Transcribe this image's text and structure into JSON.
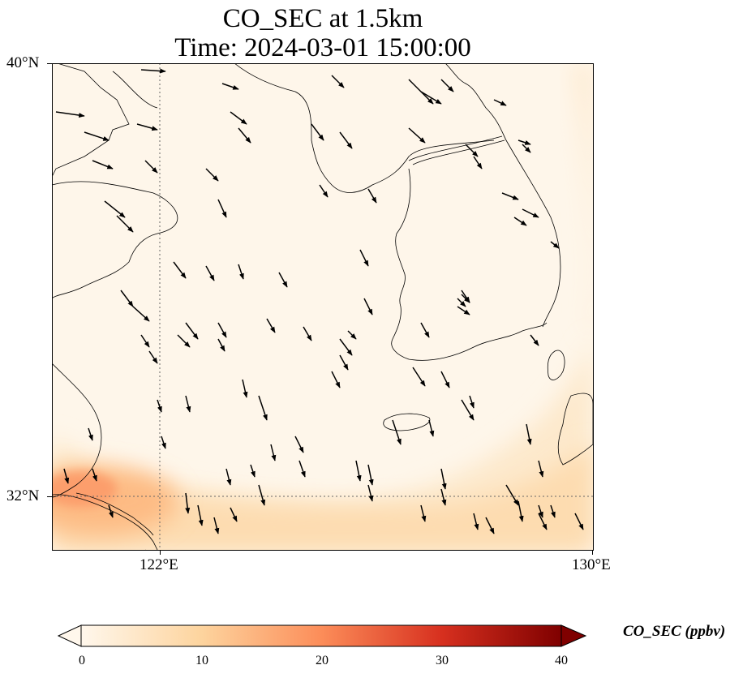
{
  "title": {
    "line1": "CO_SEC at 1.5km",
    "line2": "Time: 2024-03-01 15:00:00"
  },
  "axes": {
    "lat_labels": [
      "40°N",
      "32°N"
    ],
    "lon_labels": [
      "122°E",
      "130°E"
    ],
    "extent": {
      "lon": [
        120,
        130
      ],
      "lat": [
        31,
        40
      ]
    },
    "gridlines": {
      "lon": [
        122
      ],
      "lat": [
        32
      ]
    }
  },
  "colorbar": {
    "label": "CO_SEC (ppbv)",
    "ticks": [
      "0",
      "10",
      "20",
      "30",
      "40"
    ],
    "range": [
      0,
      40
    ],
    "extend": "both",
    "colormap": [
      "#fff7ec",
      "#fdd49e",
      "#fc8d59",
      "#d7301f",
      "#7f0000"
    ]
  },
  "chart_data": {
    "type": "heatmap",
    "variable": "CO_SEC",
    "units": "ppbv",
    "height": "1.5km",
    "time": "2024-03-01 15:00:00",
    "field_description": "Concentrations are near 0-3 ppbv over most of the domain; a band of ~5-12 ppbv lies along 31-32°N, peaking near ~18 ppbv at the Yangtze River mouth (~120.2°E, 31.9°N); a faint plume of ~4-6 ppbv extends northeast toward southern Korea and Japan.",
    "wind_vectors": "predominantly north-northwesterly flow (pointing southeast/south) across the domain"
  }
}
